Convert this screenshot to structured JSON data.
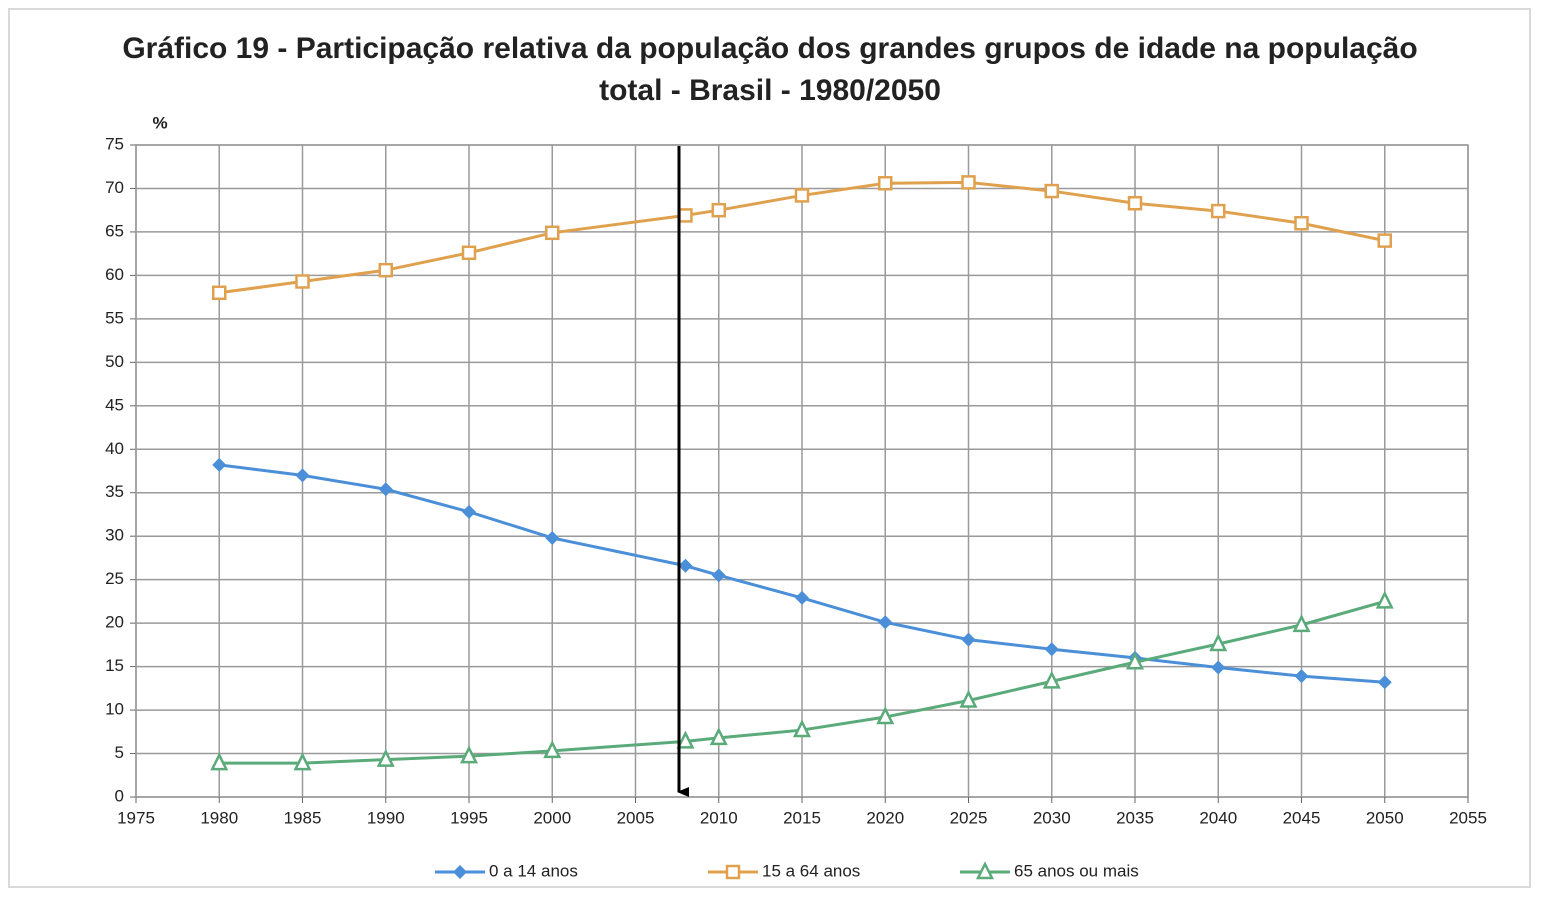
{
  "chart_data": {
    "type": "line",
    "title": "Gráfico 19 - Participação relativa da população dos grandes grupos de idade na população total - Brasil - 1980/2050",
    "y_label": "%",
    "x": [
      1980,
      1985,
      1990,
      1995,
      2000,
      2008,
      2010,
      2015,
      2020,
      2025,
      2030,
      2035,
      2040,
      2045,
      2050
    ],
    "series": [
      {
        "name": "0 a 14 anos",
        "color": "#4a8fd8",
        "marker": "diamond",
        "values": [
          38.2,
          37.0,
          35.4,
          32.8,
          29.8,
          26.6,
          25.5,
          22.9,
          20.1,
          18.1,
          17.0,
          16.0,
          14.9,
          13.9,
          13.2
        ]
      },
      {
        "name": "15 a 64 anos",
        "color": "#e0a14e",
        "marker": "square",
        "values": [
          58.0,
          59.3,
          60.6,
          62.6,
          64.9,
          66.9,
          67.5,
          69.2,
          70.6,
          70.7,
          69.7,
          68.3,
          67.4,
          66.0,
          64.0
        ]
      },
      {
        "name": "65 anos ou mais",
        "color": "#5aaa7a",
        "marker": "triangle",
        "values": [
          3.9,
          3.9,
          4.3,
          4.7,
          5.3,
          6.4,
          6.8,
          7.7,
          9.2,
          11.1,
          13.3,
          15.5,
          17.6,
          19.8,
          22.5
        ]
      }
    ],
    "xlim": [
      1975,
      2055
    ],
    "xticks": [
      1975,
      1980,
      1985,
      1990,
      1995,
      2000,
      2005,
      2010,
      2015,
      2020,
      2025,
      2030,
      2035,
      2040,
      2045,
      2050,
      2055
    ],
    "ylim": [
      0,
      75
    ],
    "yticks": [
      0,
      5,
      10,
      15,
      20,
      25,
      30,
      35,
      40,
      45,
      50,
      55,
      60,
      65,
      70,
      75
    ],
    "grid": true,
    "legend": "bottom"
  }
}
